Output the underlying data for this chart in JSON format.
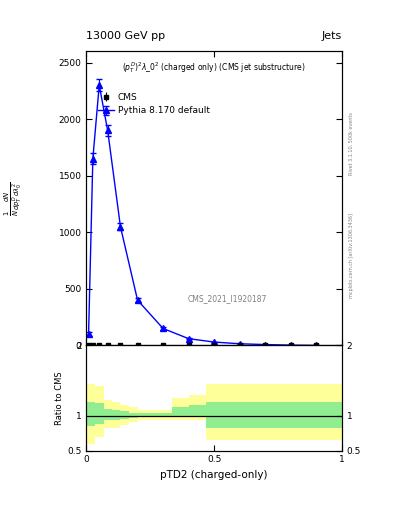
{
  "title_left": "13000 GeV pp",
  "title_right": "Jets",
  "plot_label": "$(p_T^D)^2\\lambda\\_0^2$ (charged only) (CMS jet substructure)",
  "xlabel": "pTD2 (charged-only)",
  "annotation": "CMS_2021_I1920187",
  "right_label_top": "Rivet 3.1.10, 500k events",
  "right_label_bottom": "mcplots.cern.ch [arXiv:1306.3436]",
  "cms_x": [
    0.0083,
    0.025,
    0.05,
    0.083,
    0.133,
    0.2,
    0.3,
    0.4,
    0.5,
    0.6,
    0.7,
    0.8,
    0.9
  ],
  "cms_y": [
    5,
    5,
    5,
    5,
    5,
    5,
    5,
    5,
    5,
    5,
    5,
    5,
    5
  ],
  "cms_yerr": [
    2,
    2,
    2,
    2,
    2,
    2,
    2,
    2,
    2,
    2,
    2,
    2,
    2
  ],
  "pythia_x": [
    0.0083,
    0.025,
    0.05,
    0.083,
    0.133,
    0.2,
    0.3,
    0.4,
    0.5,
    0.6,
    0.7,
    0.8,
    0.9
  ],
  "pythia_y": [
    100,
    1650,
    2300,
    1900,
    1050,
    400,
    150,
    60,
    30,
    15,
    8,
    3,
    1
  ],
  "pythia_yerr": [
    15,
    50,
    55,
    45,
    30,
    18,
    10,
    6,
    4,
    3,
    2,
    1,
    0.5
  ],
  "ylim": [
    0,
    2600
  ],
  "xlim": [
    0,
    1
  ],
  "yticks": [
    0,
    500,
    1000,
    1500,
    2000,
    2500
  ],
  "xticks": [
    0,
    0.5,
    1.0
  ],
  "ratio_ylim": [
    0.5,
    2.0
  ],
  "ratio_line": 1.0,
  "band_edges": [
    0.0,
    0.033,
    0.067,
    0.1,
    0.133,
    0.167,
    0.2,
    0.267,
    0.333,
    0.4,
    0.467,
    0.533,
    0.6,
    0.667,
    0.733,
    0.8,
    0.867,
    0.933,
    1.0
  ],
  "green_lo": [
    0.85,
    0.88,
    0.93,
    0.93,
    0.95,
    0.97,
    0.98,
    0.98,
    0.98,
    0.98,
    0.82,
    0.82,
    0.82,
    0.82,
    0.82,
    0.82,
    0.82,
    0.82,
    0.82
  ],
  "green_hi": [
    1.2,
    1.18,
    1.1,
    1.08,
    1.06,
    1.04,
    1.03,
    1.03,
    1.12,
    1.15,
    1.2,
    1.2,
    1.2,
    1.2,
    1.2,
    1.2,
    1.2,
    1.2,
    1.2
  ],
  "yellow_lo": [
    0.6,
    0.7,
    0.82,
    0.82,
    0.87,
    0.91,
    0.93,
    0.93,
    0.93,
    0.93,
    0.65,
    0.65,
    0.65,
    0.65,
    0.65,
    0.65,
    0.65,
    0.65,
    0.65
  ],
  "yellow_hi": [
    1.45,
    1.42,
    1.22,
    1.2,
    1.15,
    1.12,
    1.08,
    1.08,
    1.25,
    1.3,
    1.45,
    1.45,
    1.45,
    1.45,
    1.45,
    1.45,
    1.45,
    1.45,
    1.45
  ],
  "cms_color": "black",
  "pythia_color": "blue",
  "green_color": "#90EE90",
  "yellow_color": "#FFFF99",
  "bg_color": "white"
}
